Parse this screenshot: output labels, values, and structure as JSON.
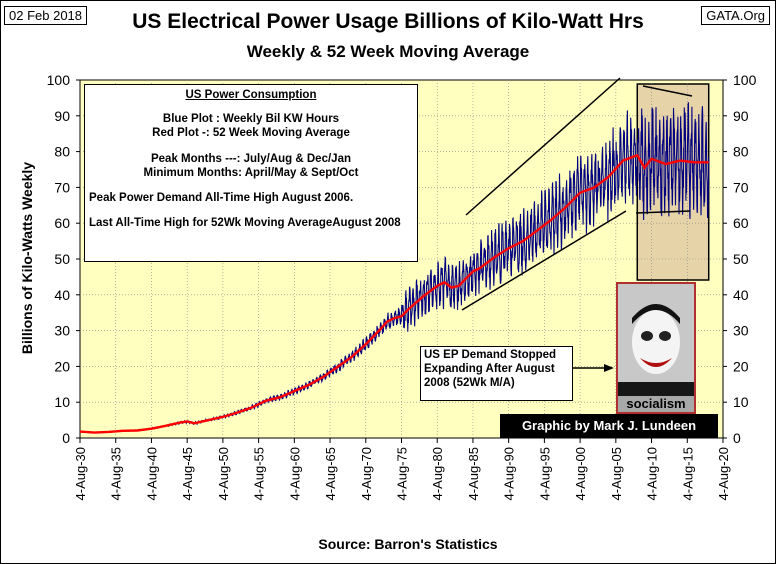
{
  "date_tag": "02 Feb 2018",
  "site_tag": "GATA.Org",
  "title": "US Electrical Power Usage Billions of Kilo-Watt Hrs",
  "subtitle": "Weekly & 52 Week Moving Average",
  "ylabel": "Billions of Kilo-Watts Weekly",
  "xlabel": "Source: Barron's Statistics",
  "legend_box": {
    "heading": "US Power Consumption",
    "line1": "Blue Plot  : Weekly Bil KW Hours",
    "line2": "Red Plot -: 52 Week Moving Average",
    "line3": "Peak Months ---: July/Aug & Dec/Jan",
    "line4": "Minimum Months: April/May & Sept/Oct",
    "line5": "Peak Power Demand All-Time High August 2006.",
    "line6": "Last All-Time High for 52Wk Moving AverageAugust 2008"
  },
  "callout": {
    "line1": "US EP Demand Stopped",
    "line2": "Expanding After August",
    "line3": "2008 (52Wk M/A)"
  },
  "photo_caption": "socialism",
  "credit": "Graphic by Mark J. Lundeen",
  "colors": {
    "plot_bg": "#ffffc0",
    "weekly": "#000080",
    "moving_avg": "#ff0000",
    "highlight": "#e6d4a8"
  },
  "chart_data": {
    "type": "line",
    "ylim": [
      0,
      100
    ],
    "yticks": [
      0,
      10,
      20,
      30,
      40,
      50,
      60,
      70,
      80,
      90,
      100
    ],
    "xlim": [
      1930,
      2020
    ],
    "xticks": [
      "4-Aug-30",
      "4-Aug-35",
      "4-Aug-40",
      "4-Aug-45",
      "4-Aug-50",
      "4-Aug-55",
      "4-Aug-60",
      "4-Aug-65",
      "4-Aug-70",
      "4-Aug-75",
      "4-Aug-80",
      "4-Aug-85",
      "4-Aug-90",
      "4-Aug-95",
      "4-Aug-00",
      "4-Aug-05",
      "4-Aug-10",
      "4-Aug-15",
      "4-Aug-20"
    ],
    "grid": true,
    "highlight_range": [
      2008,
      2018
    ],
    "series": [
      {
        "name": "Weekly Bil KW Hours",
        "x": [
          1930,
          1932,
          1934,
          1936,
          1938,
          1940,
          1942,
          1944,
          1945,
          1946,
          1948,
          1950,
          1952,
          1954,
          1956,
          1958,
          1960,
          1962,
          1964,
          1966,
          1968,
          1970,
          1972,
          1973,
          1974,
          1975,
          1976,
          1978,
          1980,
          1981,
          1982,
          1983,
          1984,
          1985,
          1986,
          1988,
          1990,
          1992,
          1994,
          1996,
          1998,
          2000,
          2002,
          2004,
          2006,
          2008,
          2009,
          2010,
          2012,
          2014,
          2016,
          2017,
          2018
        ],
        "values": [
          1.8,
          1.5,
          1.7,
          2.0,
          2.1,
          2.6,
          3.4,
          4.3,
          4.6,
          4.1,
          5.0,
          5.9,
          7.1,
          8.5,
          10.4,
          11.4,
          13.1,
          14.8,
          17.0,
          19.8,
          22.6,
          26.2,
          30.3,
          32.5,
          33.5,
          34.0,
          36.0,
          39.5,
          42.5,
          43.5,
          42.0,
          42.5,
          44.5,
          46.5,
          47.5,
          50.5,
          53.0,
          55.0,
          58.0,
          61.0,
          64.5,
          68.5,
          70.0,
          73.0,
          77.5,
          79.0,
          75.5,
          78.0,
          76.5,
          77.5,
          77.0,
          77.0,
          77.0
        ]
      },
      {
        "name": "52 Week Moving Average",
        "x": [
          1930,
          1932,
          1934,
          1936,
          1938,
          1940,
          1942,
          1944,
          1945,
          1946,
          1948,
          1950,
          1952,
          1954,
          1956,
          1958,
          1960,
          1962,
          1964,
          1966,
          1968,
          1970,
          1972,
          1973,
          1974,
          1975,
          1976,
          1978,
          1980,
          1981,
          1982,
          1983,
          1984,
          1985,
          1986,
          1988,
          1990,
          1992,
          1994,
          1996,
          1998,
          2000,
          2002,
          2004,
          2006,
          2008,
          2009,
          2010,
          2012,
          2014,
          2016,
          2017,
          2018
        ],
        "values": [
          1.8,
          1.5,
          1.7,
          2.0,
          2.1,
          2.6,
          3.4,
          4.3,
          4.6,
          4.1,
          5.0,
          5.9,
          7.1,
          8.5,
          10.4,
          11.4,
          13.1,
          14.8,
          17.0,
          19.8,
          22.6,
          26.2,
          30.3,
          32.5,
          33.5,
          34.0,
          36.0,
          39.5,
          42.5,
          43.5,
          42.0,
          42.5,
          44.5,
          46.5,
          47.5,
          50.5,
          53.0,
          55.0,
          58.0,
          61.0,
          64.5,
          68.5,
          70.0,
          73.0,
          77.5,
          79.0,
          75.5,
          78.0,
          76.5,
          77.5,
          77.0,
          77.0,
          77.0
        ]
      }
    ]
  }
}
